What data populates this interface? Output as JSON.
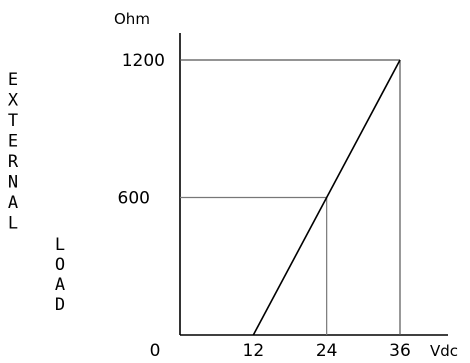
{
  "chart_data": {
    "type": "line",
    "title": "",
    "ylabel_lines": [
      "EXTERNAL",
      "LOAD"
    ],
    "y_unit": "Ohm",
    "x_unit": "Vdc",
    "xlim": [
      0,
      36
    ],
    "ylim": [
      0,
      1200
    ],
    "x_ticks": [
      "0",
      "12",
      "24",
      "36"
    ],
    "y_ticks": [
      "600",
      "1200"
    ],
    "grid": false,
    "series": [
      {
        "x": [
          12,
          36
        ],
        "y": [
          0,
          1200
        ]
      }
    ],
    "annotations": {
      "h_line_1200": {
        "y": 1200,
        "x_from": 0,
        "x_to": 36
      },
      "v_line_36": {
        "x": 36,
        "y_from": 0,
        "y_to": 1200
      },
      "h_line_600": {
        "y": 600,
        "x_from": 0,
        "x_to": 24
      },
      "v_line_24": {
        "x": 24,
        "y_from": 0,
        "y_to": 600
      }
    },
    "colors": {
      "axis": "#000000",
      "line": "#000000",
      "guide": "#555555"
    }
  }
}
